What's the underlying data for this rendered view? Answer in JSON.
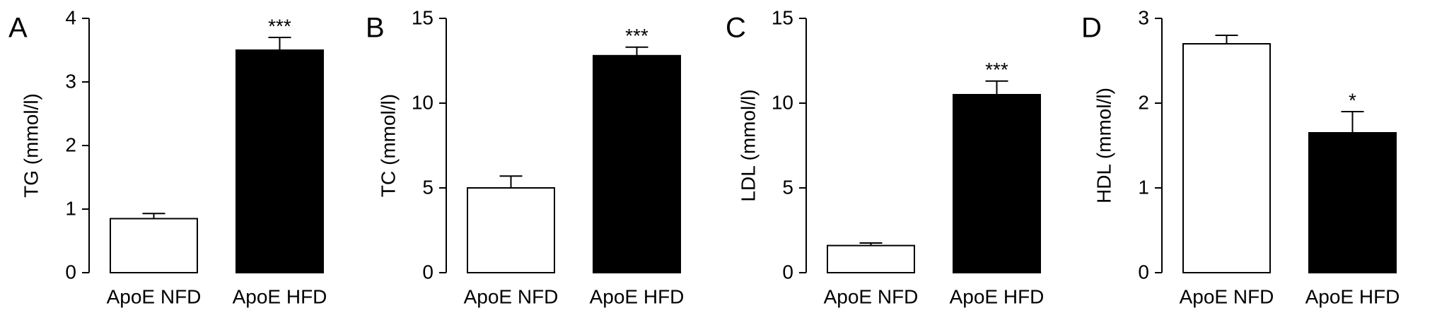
{
  "chart_data": [
    {
      "type": "bar",
      "panel": "A",
      "y_label": "TG (mmol/l)",
      "categories": [
        "ApoE NFD",
        "ApoE HFD"
      ],
      "values": [
        0.85,
        3.5
      ],
      "errors": [
        0.08,
        0.2
      ],
      "colors": [
        "#ffffff",
        "#000000"
      ],
      "ylim": [
        0,
        4
      ],
      "yticks": [
        0,
        1,
        2,
        3,
        4
      ],
      "annotations": [
        {
          "label": "***",
          "category": 1
        }
      ]
    },
    {
      "type": "bar",
      "panel": "B",
      "y_label": "TC (mmol/l)",
      "categories": [
        "ApoE NFD",
        "ApoE HFD"
      ],
      "values": [
        5.0,
        12.8
      ],
      "errors": [
        0.7,
        0.5
      ],
      "colors": [
        "#ffffff",
        "#000000"
      ],
      "ylim": [
        0,
        15
      ],
      "yticks": [
        0,
        5,
        10,
        15
      ],
      "annotations": [
        {
          "label": "***",
          "category": 1
        }
      ]
    },
    {
      "type": "bar",
      "panel": "C",
      "y_label": "LDL (mmol/l)",
      "categories": [
        "ApoE NFD",
        "ApoE HFD"
      ],
      "values": [
        1.6,
        10.5
      ],
      "errors": [
        0.15,
        0.8
      ],
      "colors": [
        "#ffffff",
        "#000000"
      ],
      "ylim": [
        0,
        15
      ],
      "yticks": [
        0,
        5,
        10,
        15
      ],
      "annotations": [
        {
          "label": "***",
          "category": 1
        }
      ]
    },
    {
      "type": "bar",
      "panel": "D",
      "y_label": "HDL (mmol/l)",
      "categories": [
        "ApoE NFD",
        "ApoE HFD"
      ],
      "values": [
        2.7,
        1.65
      ],
      "errors": [
        0.1,
        0.25
      ],
      "colors": [
        "#ffffff",
        "#000000"
      ],
      "ylim": [
        0,
        3
      ],
      "yticks": [
        0,
        1,
        2,
        3
      ],
      "annotations": [
        {
          "label": "*",
          "category": 1
        }
      ]
    }
  ]
}
